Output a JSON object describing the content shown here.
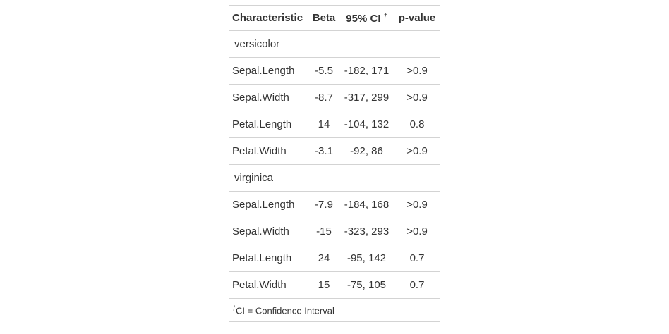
{
  "table": {
    "header": [
      "Characteristic",
      "Beta",
      "95% CI",
      "p-value"
    ],
    "header_footnote_mark": "†",
    "groups": [
      {
        "label": "versicolor",
        "rows": [
          [
            "Sepal.Length",
            "-5.5",
            "-182, 171",
            ">0.9"
          ],
          [
            "Sepal.Width",
            "-8.7",
            "-317, 299",
            ">0.9"
          ],
          [
            "Petal.Length",
            "14",
            "-104, 132",
            "0.8"
          ],
          [
            "Petal.Width",
            "-3.1",
            "-92, 86",
            ">0.9"
          ]
        ]
      },
      {
        "label": "virginica",
        "rows": [
          [
            "Sepal.Length",
            "-7.9",
            "-184, 168",
            ">0.9"
          ],
          [
            "Sepal.Width",
            "-15",
            "-323, 293",
            ">0.9"
          ],
          [
            "Petal.Length",
            "24",
            "-95, 142",
            "0.7"
          ],
          [
            "Petal.Width",
            "15",
            "-75, 105",
            "0.7"
          ]
        ]
      }
    ],
    "footnote": {
      "mark": "†",
      "text": "CI = Confidence Interval"
    }
  }
}
